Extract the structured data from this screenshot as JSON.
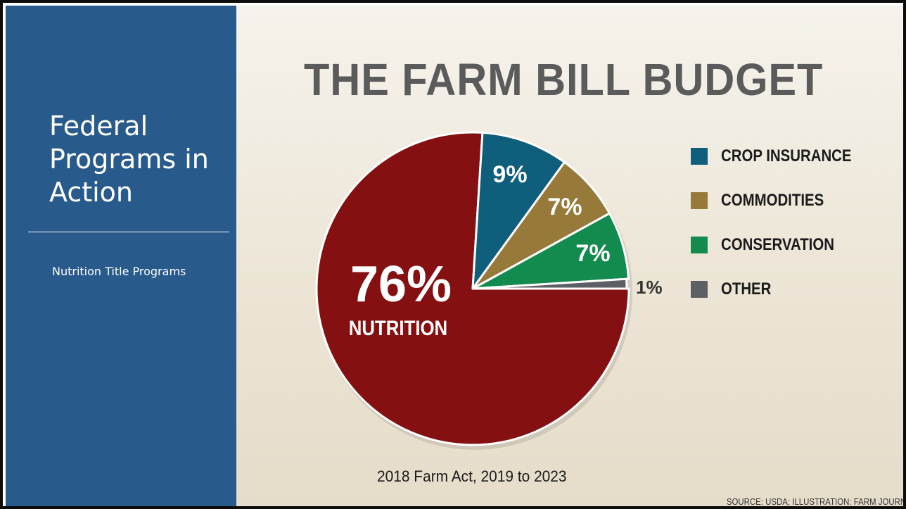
{
  "slide": {
    "title": "Federal\nPrograms in\nAction",
    "subtitle": "Nutrition Title Programs"
  },
  "infographic": {
    "caption": "2018 Farm Act, 2019 to 2023",
    "source": "SOURCE: USDA; ILLUSTRATION: FARM JOURN"
  },
  "chart_data": {
    "type": "pie",
    "title": "THE FARM BILL BUDGET",
    "slices": [
      {
        "label": "NUTRITION",
        "value": 76,
        "display": "76%",
        "color": "#851012",
        "in_legend": false
      },
      {
        "label": "CROP INSURANCE",
        "value": 9,
        "display": "9%",
        "color": "#0f5e7b",
        "in_legend": true
      },
      {
        "label": "COMMODITIES",
        "value": 7,
        "display": "7%",
        "color": "#97793a",
        "in_legend": true
      },
      {
        "label": "CONSERVATION",
        "value": 7,
        "display": "7%",
        "color": "#138b4e",
        "in_legend": true
      },
      {
        "label": "OTHER",
        "value": 1,
        "display": "1%",
        "color": "#5c5f66",
        "in_legend": true
      }
    ],
    "legend_position": "right"
  }
}
